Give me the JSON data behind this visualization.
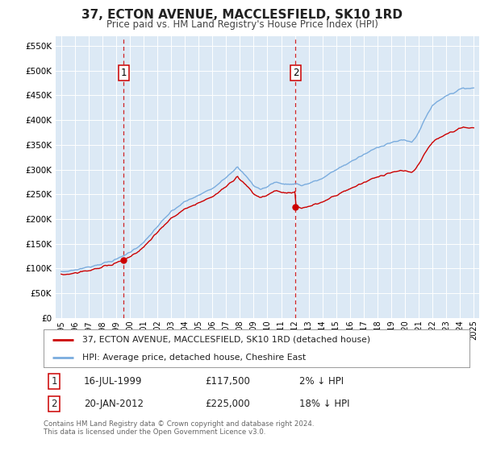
{
  "title": "37, ECTON AVENUE, MACCLESFIELD, SK10 1RD",
  "subtitle": "Price paid vs. HM Land Registry's House Price Index (HPI)",
  "ylabel_ticks": [
    "£0",
    "£50K",
    "£100K",
    "£150K",
    "£200K",
    "£250K",
    "£300K",
    "£350K",
    "£400K",
    "£450K",
    "£500K",
    "£550K"
  ],
  "ytick_values": [
    0,
    50000,
    100000,
    150000,
    200000,
    250000,
    300000,
    350000,
    400000,
    450000,
    500000,
    550000
  ],
  "ylim": [
    0,
    570000
  ],
  "xlim_start": 1994.6,
  "xlim_end": 2025.4,
  "background_color": "#dce9f5",
  "line1_color": "#cc0000",
  "line2_color": "#7aacde",
  "vline1_x": 1999.54,
  "vline2_x": 2012.05,
  "marker1_x": 1999.54,
  "marker1_y": 117500,
  "marker2_x": 2012.05,
  "marker2_y": 225000,
  "sale1_date": "16-JUL-1999",
  "sale1_price": "£117,500",
  "sale1_hpi": "2% ↓ HPI",
  "sale2_date": "20-JAN-2012",
  "sale2_price": "£225,000",
  "sale2_hpi": "18% ↓ HPI",
  "legend1_label": "37, ECTON AVENUE, MACCLESFIELD, SK10 1RD (detached house)",
  "legend2_label": "HPI: Average price, detached house, Cheshire East",
  "footnote": "Contains HM Land Registry data © Crown copyright and database right 2024.\nThis data is licensed under the Open Government Licence v3.0.",
  "xtick_years": [
    1995,
    1996,
    1997,
    1998,
    1999,
    2000,
    2001,
    2002,
    2003,
    2004,
    2005,
    2006,
    2007,
    2008,
    2009,
    2010,
    2011,
    2012,
    2013,
    2014,
    2015,
    2016,
    2017,
    2018,
    2019,
    2020,
    2021,
    2022,
    2023,
    2024,
    2025
  ]
}
